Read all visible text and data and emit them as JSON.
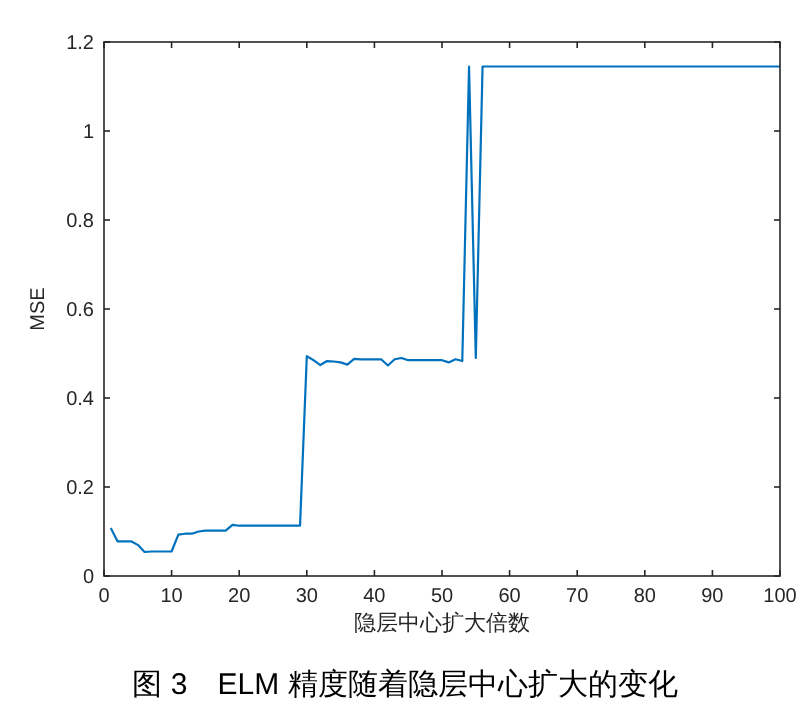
{
  "chart_data": {
    "type": "line",
    "xlabel": "隐层中心扩大倍数",
    "ylabel": "MSE",
    "annotations": [
      "图 3　ELM 精度随着隐层中心扩大的变化"
    ],
    "x": [
      1,
      2,
      3,
      4,
      5,
      6,
      7,
      8,
      9,
      10,
      11,
      12,
      13,
      14,
      15,
      16,
      17,
      18,
      19,
      20,
      21,
      22,
      23,
      24,
      25,
      26,
      27,
      28,
      29,
      30,
      31,
      32,
      33,
      34,
      35,
      36,
      37,
      38,
      39,
      40,
      41,
      42,
      43,
      44,
      45,
      46,
      47,
      48,
      49,
      50,
      51,
      52,
      53,
      54,
      55,
      56,
      57,
      58,
      59,
      60,
      61,
      62,
      63,
      64,
      65,
      66,
      67,
      68,
      69,
      70,
      71,
      72,
      73,
      74,
      75,
      76,
      77,
      78,
      79,
      80,
      81,
      82,
      83,
      84,
      85,
      86,
      87,
      88,
      89,
      90,
      91,
      92,
      93,
      94,
      95,
      96,
      97,
      98,
      99,
      100
    ],
    "series": [
      {
        "color": "#0072bd",
        "values": [
          0.108,
          0.078,
          0.078,
          0.078,
          0.07,
          0.054,
          0.055,
          0.055,
          0.055,
          0.055,
          0.093,
          0.095,
          0.095,
          0.1,
          0.102,
          0.102,
          0.102,
          0.102,
          0.115,
          0.113,
          0.113,
          0.113,
          0.113,
          0.113,
          0.113,
          0.113,
          0.113,
          0.113,
          0.113,
          0.494,
          0.485,
          0.474,
          0.483,
          0.482,
          0.48,
          0.475,
          0.488,
          0.487,
          0.487,
          0.487,
          0.487,
          0.473,
          0.487,
          0.49,
          0.485,
          0.485,
          0.485,
          0.485,
          0.485,
          0.485,
          0.48,
          0.487,
          0.483,
          1.145,
          0.49,
          1.145,
          1.145,
          1.145,
          1.145,
          1.145,
          1.145,
          1.145,
          1.145,
          1.145,
          1.145,
          1.145,
          1.145,
          1.145,
          1.145,
          1.145,
          1.145,
          1.145,
          1.145,
          1.145,
          1.145,
          1.145,
          1.145,
          1.145,
          1.145,
          1.145,
          1.145,
          1.145,
          1.145,
          1.145,
          1.145,
          1.145,
          1.145,
          1.145,
          1.145,
          1.145,
          1.145,
          1.145,
          1.145,
          1.145,
          1.145,
          1.145,
          1.145,
          1.145,
          1.145,
          1.145
        ]
      }
    ],
    "xlim": [
      0,
      100
    ],
    "ylim": [
      0,
      1.2
    ],
    "xticks": [
      0,
      10,
      20,
      30,
      40,
      50,
      60,
      70,
      80,
      90,
      100
    ],
    "yticks": [
      0,
      0.2,
      0.4,
      0.6,
      0.8,
      1,
      1.2
    ],
    "grid": false,
    "marker": "none",
    "line_style": "solid"
  }
}
